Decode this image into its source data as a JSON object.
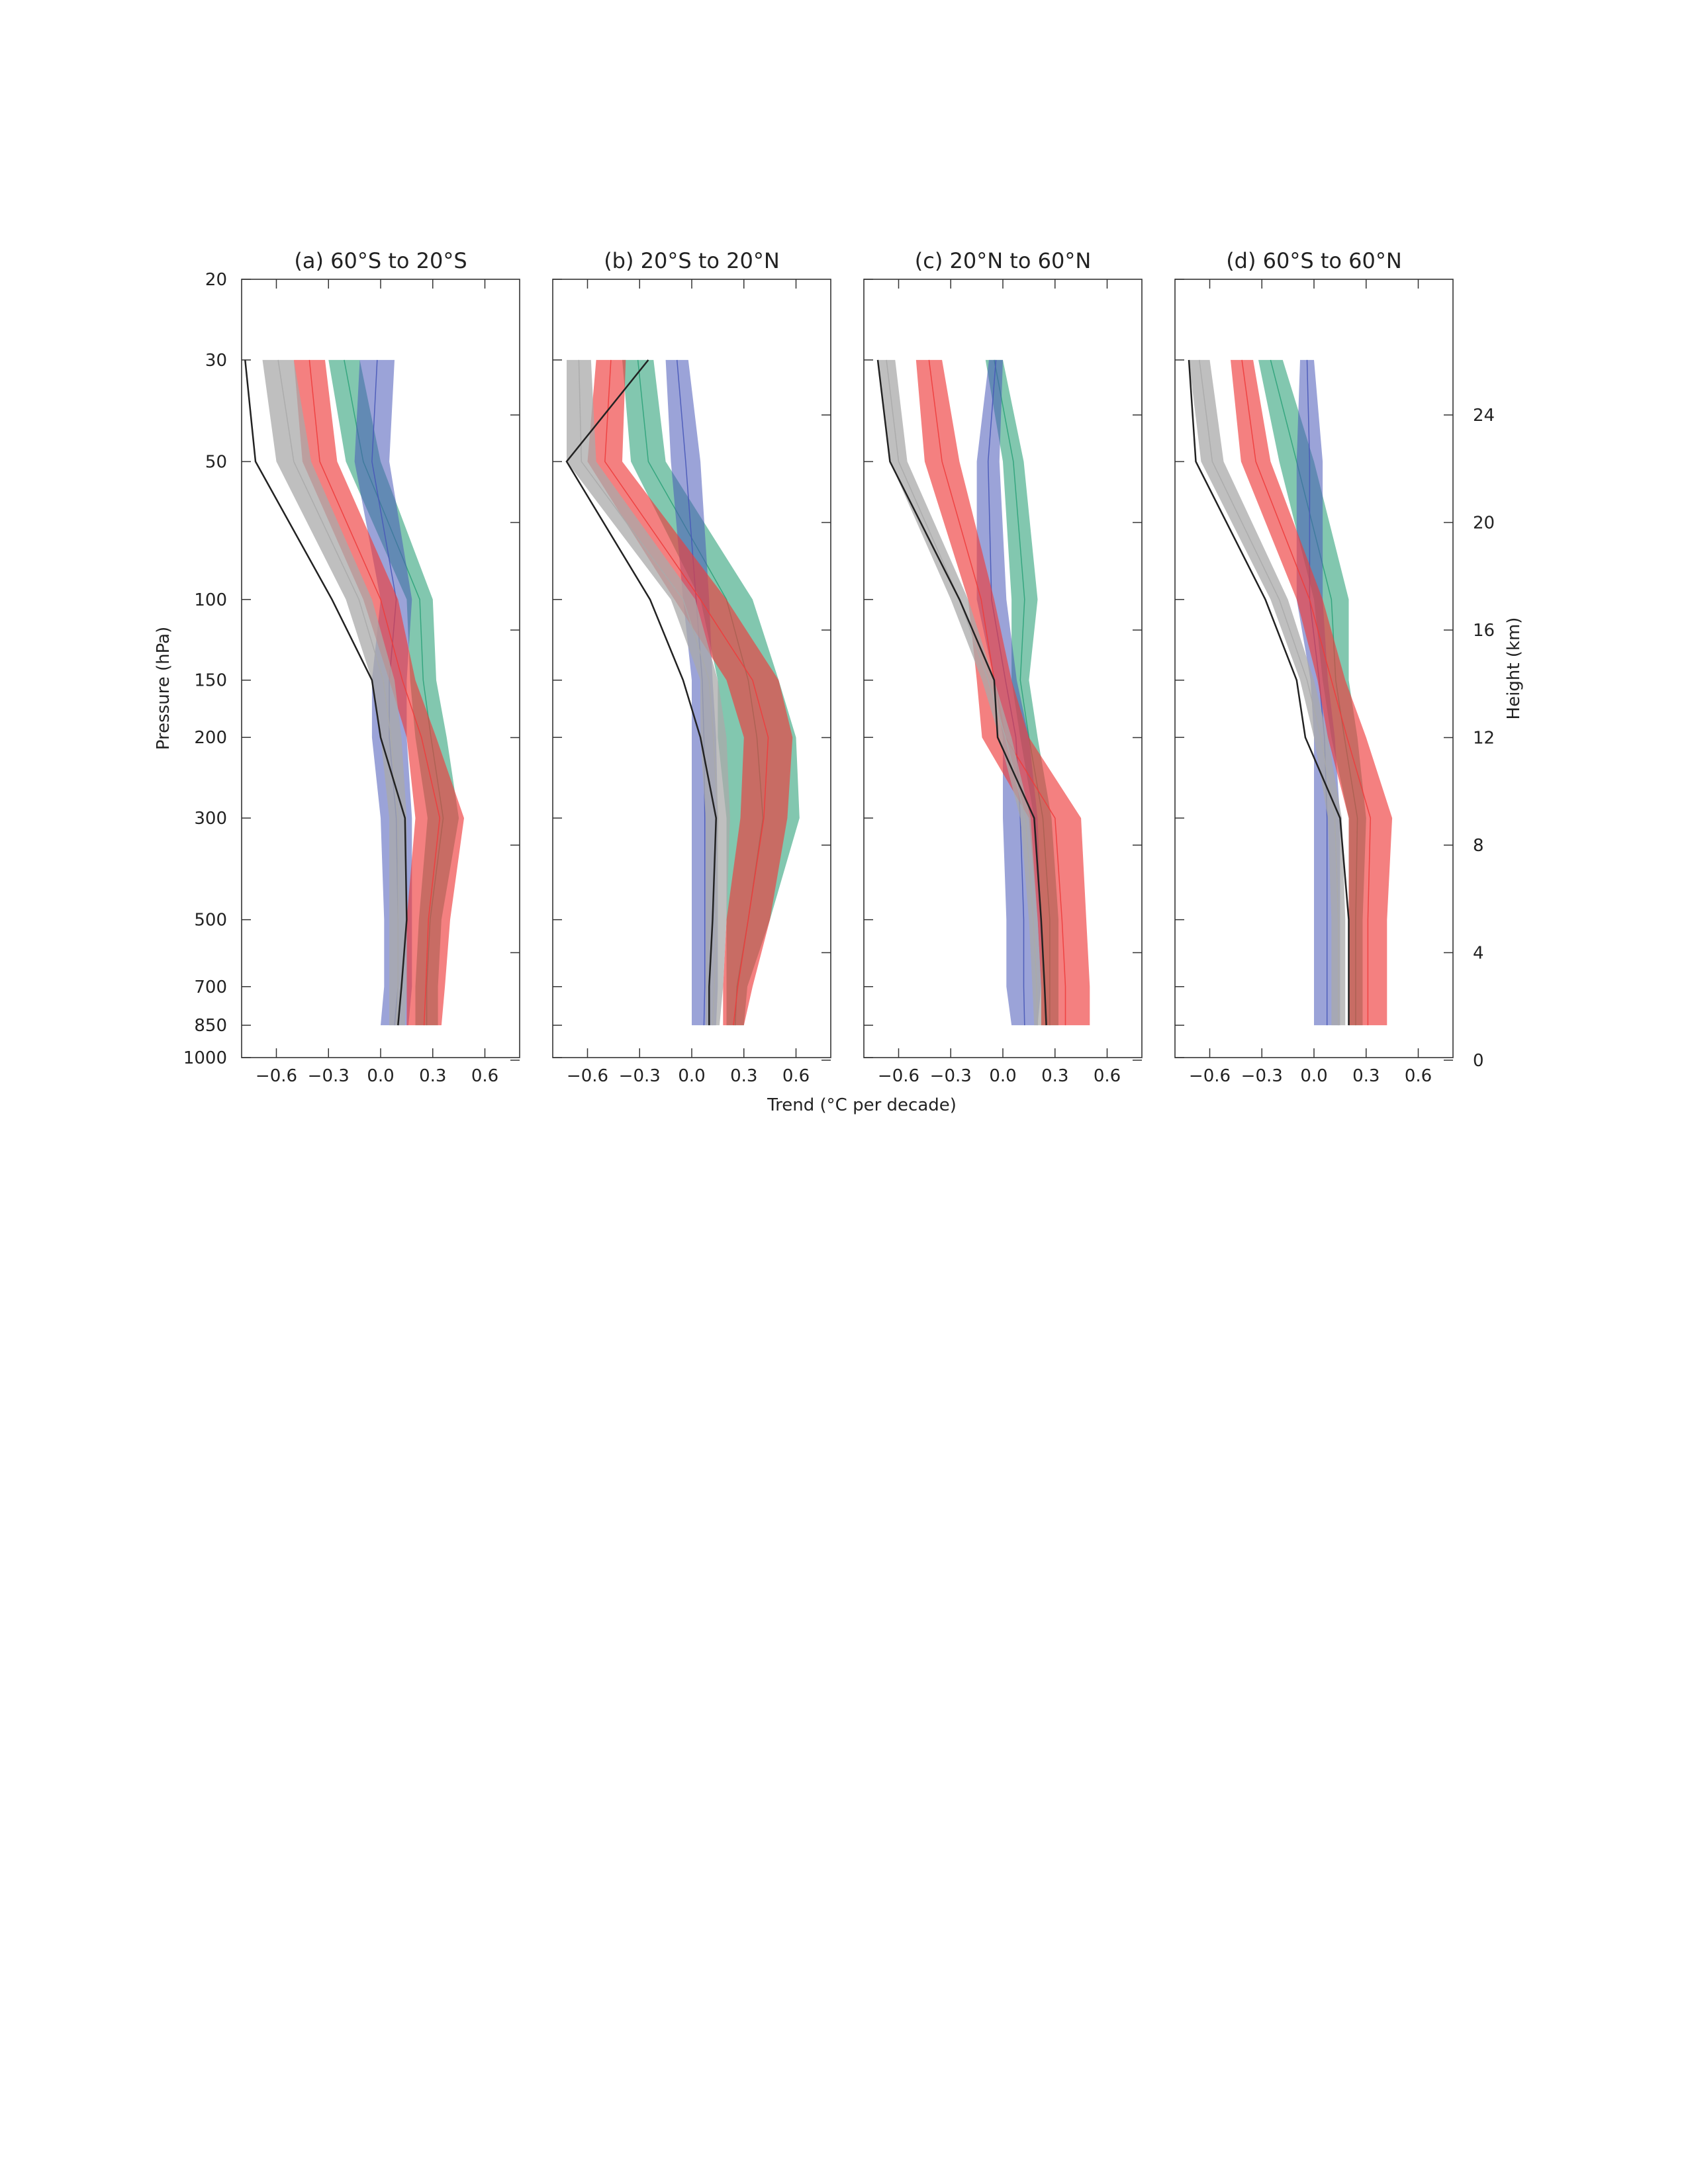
{
  "figure": {
    "xlabel": "Trend (°C per decade)",
    "ylabel_left": "Pressure (hPa)",
    "ylabel_right": "Height (km)",
    "pressure_ticks": [
      20,
      30,
      50,
      100,
      150,
      200,
      300,
      500,
      700,
      850,
      1000
    ],
    "height_ticks": [
      0,
      4,
      8,
      12,
      16,
      20,
      24
    ],
    "x_ticks": [
      -0.6,
      -0.3,
      0.0,
      0.3,
      0.6
    ],
    "x_tick_labels": [
      "−0.6",
      "−0.3",
      "0.0",
      "0.3",
      "0.6"
    ],
    "colors": {
      "green": "#2ea27a",
      "blue": "#4858b8",
      "blue_upper": "#3f6fd8",
      "red": "#ee3c3c",
      "gray": "#aaaaaa",
      "black": "#222222"
    }
  },
  "chart_data": [
    {
      "type": "line",
      "title": "(a) 60°S to 20°S",
      "xlim": [
        -0.8,
        0.8
      ],
      "ylim_hPa": [
        1000,
        20
      ],
      "y_levels_hPa": [
        30,
        50,
        100,
        150,
        200,
        300,
        500,
        700,
        850
      ],
      "series": [
        {
          "color": "green",
          "low": [
            -0.3,
            -0.2,
            0.15,
            0.17,
            0.2,
            0.27,
            0.22,
            0.2,
            0.2
          ],
          "high": [
            -0.12,
            0.0,
            0.3,
            0.32,
            0.38,
            0.45,
            0.35,
            0.33,
            0.33
          ]
        },
        {
          "color": "blue",
          "low": [
            -0.12,
            -0.15,
            0.0,
            -0.05,
            -0.05,
            0.0,
            0.02,
            0.02,
            0.0
          ],
          "high": [
            0.08,
            0.05,
            0.18,
            0.15,
            0.15,
            0.18,
            0.18,
            0.18,
            0.16
          ]
        },
        {
          "color": "red",
          "low": [
            -0.5,
            -0.45,
            -0.1,
            0.05,
            0.15,
            0.2,
            0.15,
            0.15,
            0.15
          ],
          "high": [
            -0.32,
            -0.25,
            0.1,
            0.2,
            0.32,
            0.48,
            0.4,
            0.37,
            0.35
          ]
        },
        {
          "color": "gray",
          "low": [
            -0.68,
            -0.6,
            -0.2,
            -0.05,
            0.0,
            0.05,
            0.05,
            0.05,
            0.05
          ],
          "high": [
            -0.5,
            -0.4,
            -0.05,
            0.08,
            0.12,
            0.15,
            0.15,
            0.15,
            0.14
          ]
        },
        {
          "color": "black",
          "line": [
            -0.78,
            -0.72,
            -0.28,
            -0.05,
            0.0,
            0.14,
            0.15,
            0.12,
            0.1
          ]
        }
      ]
    },
    {
      "type": "line",
      "title": "(b) 20°S to 20°N",
      "xlim": [
        -0.8,
        0.8
      ],
      "ylim_hPa": [
        1000,
        20
      ],
      "y_levels_hPa": [
        30,
        50,
        100,
        150,
        200,
        300,
        500,
        700,
        850
      ],
      "series": [
        {
          "color": "green",
          "low": [
            -0.4,
            -0.35,
            0.05,
            0.15,
            0.15,
            0.2,
            0.2,
            0.2,
            0.2
          ],
          "high": [
            -0.22,
            -0.15,
            0.35,
            0.5,
            0.6,
            0.62,
            0.45,
            0.32,
            0.3
          ]
        },
        {
          "color": "blue",
          "low": [
            -0.15,
            -0.12,
            -0.05,
            0.0,
            0.0,
            0.0,
            0.0,
            0.0,
            0.0
          ],
          "high": [
            -0.02,
            0.05,
            0.1,
            0.12,
            0.14,
            0.15,
            0.15,
            0.15,
            0.14
          ]
        },
        {
          "color": "red",
          "low": [
            -0.55,
            -0.6,
            -0.1,
            0.2,
            0.3,
            0.28,
            0.2,
            0.18,
            0.18
          ],
          "high": [
            -0.38,
            -0.4,
            0.2,
            0.5,
            0.58,
            0.55,
            0.45,
            0.35,
            0.3
          ]
        },
        {
          "color": "gray",
          "low": [
            -0.72,
            -0.72,
            -0.12,
            0.05,
            0.05,
            0.08,
            0.08,
            0.08,
            0.08
          ],
          "high": [
            -0.58,
            -0.55,
            0.02,
            0.15,
            0.2,
            0.22,
            0.2,
            0.18,
            0.16
          ]
        },
        {
          "color": "black",
          "line": [
            -0.25,
            -0.72,
            -0.24,
            -0.05,
            0.05,
            0.14,
            0.12,
            0.1,
            0.1
          ]
        }
      ]
    },
    {
      "type": "line",
      "title": "(c) 20°N to 60°N",
      "xlim": [
        -0.8,
        0.8
      ],
      "ylim_hPa": [
        1000,
        20
      ],
      "y_levels_hPa": [
        30,
        50,
        100,
        150,
        200,
        300,
        500,
        700,
        850
      ],
      "series": [
        {
          "color": "green",
          "low": [
            -0.1,
            0.0,
            0.05,
            0.05,
            0.1,
            0.18,
            0.22,
            0.22,
            0.22
          ],
          "high": [
            0.0,
            0.12,
            0.2,
            0.15,
            0.2,
            0.28,
            0.32,
            0.32,
            0.32
          ]
        },
        {
          "color": "blue",
          "low": [
            -0.08,
            -0.15,
            -0.15,
            -0.05,
            0.0,
            0.0,
            0.02,
            0.02,
            0.05
          ],
          "high": [
            0.0,
            -0.02,
            0.02,
            0.08,
            0.15,
            0.2,
            0.22,
            0.22,
            0.2
          ]
        },
        {
          "color": "red",
          "low": [
            -0.5,
            -0.45,
            -0.2,
            -0.15,
            -0.12,
            0.15,
            0.2,
            0.22,
            0.22
          ],
          "high": [
            -0.35,
            -0.25,
            -0.05,
            0.05,
            0.15,
            0.45,
            0.48,
            0.5,
            0.5
          ]
        },
        {
          "color": "gray",
          "low": [
            -0.72,
            -0.65,
            -0.3,
            -0.12,
            -0.02,
            0.1,
            0.15,
            0.17,
            0.18
          ],
          "high": [
            -0.62,
            -0.55,
            -0.2,
            -0.05,
            0.05,
            0.16,
            0.2,
            0.22,
            0.22
          ]
        },
        {
          "color": "black",
          "line": [
            -0.72,
            -0.65,
            -0.25,
            -0.05,
            -0.03,
            0.18,
            0.22,
            0.24,
            0.25
          ]
        }
      ]
    },
    {
      "type": "line",
      "title": "(d) 60°S to 60°N",
      "xlim": [
        -0.8,
        0.8
      ],
      "ylim_hPa": [
        1000,
        20
      ],
      "y_levels_hPa": [
        30,
        50,
        100,
        150,
        200,
        300,
        500,
        700,
        850
      ],
      "series": [
        {
          "color": "green",
          "low": [
            -0.32,
            -0.2,
            0.0,
            0.05,
            0.1,
            0.2,
            0.2,
            0.2,
            0.2
          ],
          "high": [
            -0.18,
            0.0,
            0.2,
            0.2,
            0.25,
            0.3,
            0.28,
            0.28,
            0.28
          ]
        },
        {
          "color": "blue",
          "low": [
            -0.08,
            -0.1,
            -0.1,
            -0.02,
            0.0,
            0.0,
            0.0,
            0.0,
            0.0
          ],
          "high": [
            0.0,
            0.05,
            0.05,
            0.08,
            0.12,
            0.15,
            0.15,
            0.15,
            0.15
          ]
        },
        {
          "color": "red",
          "low": [
            -0.48,
            -0.42,
            -0.1,
            0.02,
            0.08,
            0.2,
            0.2,
            0.2,
            0.2
          ],
          "high": [
            -0.35,
            -0.25,
            0.05,
            0.18,
            0.3,
            0.45,
            0.42,
            0.42,
            0.42
          ]
        },
        {
          "color": "gray",
          "low": [
            -0.72,
            -0.65,
            -0.25,
            -0.08,
            0.0,
            0.08,
            0.1,
            0.1,
            0.1
          ],
          "high": [
            -0.6,
            -0.52,
            -0.15,
            0.0,
            0.08,
            0.16,
            0.18,
            0.18,
            0.18
          ]
        },
        {
          "color": "black",
          "line": [
            -0.72,
            -0.68,
            -0.28,
            -0.1,
            -0.05,
            0.15,
            0.2,
            0.2,
            0.2
          ]
        }
      ]
    }
  ]
}
